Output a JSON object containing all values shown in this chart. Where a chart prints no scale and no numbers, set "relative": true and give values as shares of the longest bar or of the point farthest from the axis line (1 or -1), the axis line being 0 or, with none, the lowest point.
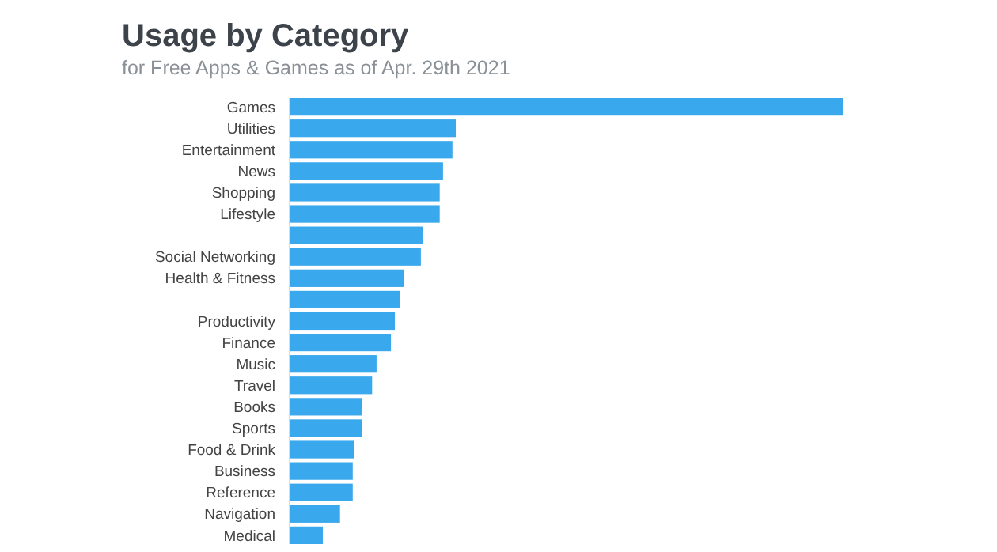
{
  "chart_data": {
    "type": "bar",
    "orientation": "horizontal",
    "relative": true,
    "title": "Usage by Category",
    "subtitle": "for Free Apps & Games as of Apr. 29th 2021",
    "categories": [
      "Games",
      "Utilities",
      "Entertainment",
      "News",
      "Shopping",
      "Lifestyle",
      null,
      "Social Networking",
      "Health & Fitness",
      null,
      "Productivity",
      "Finance",
      "Music",
      "Travel",
      "Books",
      "Sports",
      "Food & Drink",
      "Business",
      "Reference",
      "Navigation",
      "Medical"
    ],
    "values": [
      1,
      0.3,
      0.294,
      0.277,
      0.271,
      0.271,
      0.24,
      0.237,
      0.206,
      0.2,
      0.19,
      0.183,
      0.157,
      0.149,
      0.131,
      0.131,
      0.117,
      0.114,
      0.114,
      0.091,
      0.06
    ],
    "color": "#3aa8ec"
  }
}
